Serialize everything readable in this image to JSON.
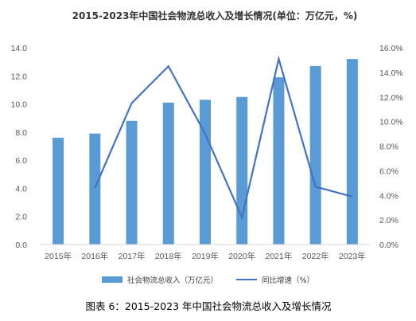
{
  "chart_data": {
    "type": "bar+line",
    "title": "2015-2023年中国社会物流总收入及增长情况(单位：万亿元，%)",
    "categories": [
      "2015年",
      "2016年",
      "2017年",
      "2018年",
      "2019年",
      "2020年",
      "2021年",
      "2022年",
      "2023年"
    ],
    "series": [
      {
        "name": "社会物流总收入（万亿元）",
        "type": "bar",
        "axis": "left",
        "color": "#5b9bd5",
        "values": [
          7.6,
          7.9,
          8.8,
          10.1,
          10.3,
          10.5,
          11.9,
          12.7,
          13.2
        ]
      },
      {
        "name": "同比增速（%）",
        "type": "line",
        "axis": "right",
        "color": "#4472c4",
        "values": [
          null,
          4.6,
          11.5,
          14.5,
          9.0,
          2.2,
          15.1,
          4.7,
          3.9
        ]
      }
    ],
    "y_left": {
      "ylim": [
        0,
        14
      ],
      "ticks": [
        "0.0",
        "2.0",
        "4.0",
        "6.0",
        "8.0",
        "10.0",
        "12.0",
        "14.0"
      ]
    },
    "y_right": {
      "ylim": [
        0,
        16
      ],
      "ticks": [
        "0.0%",
        "2.0%",
        "4.0%",
        "6.0%",
        "8.0%",
        "10.0%",
        "12.0%",
        "14.0%",
        "16.0%"
      ]
    },
    "grid": false,
    "legend_position": "bottom"
  },
  "caption": "图表 6：2015-2023 年中国社会物流总收入及增长情况"
}
